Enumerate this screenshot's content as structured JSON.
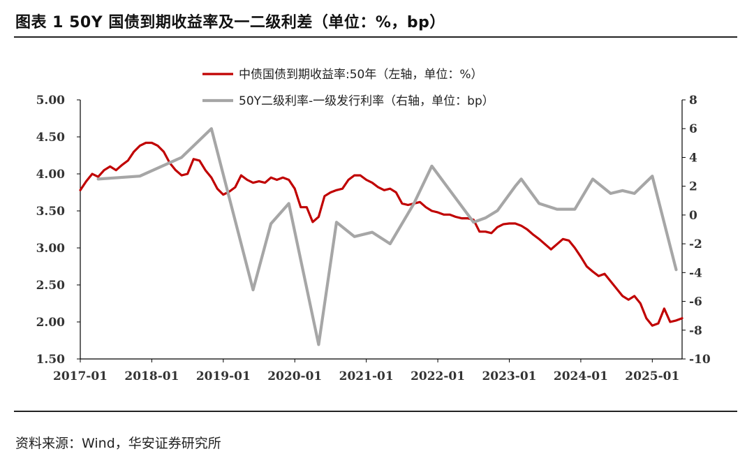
{
  "header": {
    "title": "图表 1 50Y 国债到期收益率及一二级利差（单位：%，bp）"
  },
  "footer": {
    "source": "资料来源：Wind，华安证券研究所"
  },
  "colors": {
    "series_red": "#c00000",
    "series_gray": "#a6a6a6",
    "axis": "#000000"
  },
  "chart_data": {
    "type": "line",
    "x_tick_labels": [
      "2017-01",
      "2018-01",
      "2019-01",
      "2020-01",
      "2021-01",
      "2022-01",
      "2023-01",
      "2024-01",
      "2025-01"
    ],
    "xlim": [
      "2017-01",
      "2025-06"
    ],
    "y_left": {
      "ylim": [
        1.5,
        5.0
      ],
      "ticks": [
        "1.50",
        "2.00",
        "2.50",
        "3.00",
        "3.50",
        "4.00",
        "4.50",
        "5.00"
      ]
    },
    "y_right": {
      "ylim": [
        -10,
        8
      ],
      "ticks": [
        "-10",
        "-8",
        "-6",
        "-4",
        "-2",
        "0",
        "2",
        "4",
        "6",
        "8"
      ]
    },
    "legend_position": "top-center",
    "series": [
      {
        "name": "中债国债到期收益率:50年（左轴，单位：%）",
        "axis": "left",
        "color": "#c00000",
        "points": [
          [
            "2017-01",
            3.78
          ],
          [
            "2017-02",
            3.9
          ],
          [
            "2017-03",
            4.0
          ],
          [
            "2017-04",
            3.96
          ],
          [
            "2017-05",
            4.05
          ],
          [
            "2017-06",
            4.1
          ],
          [
            "2017-07",
            4.05
          ],
          [
            "2017-08",
            4.12
          ],
          [
            "2017-09",
            4.18
          ],
          [
            "2017-10",
            4.3
          ],
          [
            "2017-11",
            4.38
          ],
          [
            "2017-12",
            4.42
          ],
          [
            "2018-01",
            4.42
          ],
          [
            "2018-02",
            4.38
          ],
          [
            "2018-03",
            4.3
          ],
          [
            "2018-04",
            4.15
          ],
          [
            "2018-05",
            4.05
          ],
          [
            "2018-06",
            3.98
          ],
          [
            "2018-07",
            4.0
          ],
          [
            "2018-08",
            4.2
          ],
          [
            "2018-09",
            4.18
          ],
          [
            "2018-10",
            4.05
          ],
          [
            "2018-11",
            3.95
          ],
          [
            "2018-12",
            3.8
          ],
          [
            "2019-01",
            3.72
          ],
          [
            "2019-02",
            3.76
          ],
          [
            "2019-03",
            3.82
          ],
          [
            "2019-04",
            3.98
          ],
          [
            "2019-05",
            3.92
          ],
          [
            "2019-06",
            3.88
          ],
          [
            "2019-07",
            3.9
          ],
          [
            "2019-08",
            3.88
          ],
          [
            "2019-09",
            3.95
          ],
          [
            "2019-10",
            3.92
          ],
          [
            "2019-11",
            3.95
          ],
          [
            "2019-12",
            3.92
          ],
          [
            "2020-01",
            3.8
          ],
          [
            "2020-02",
            3.55
          ],
          [
            "2020-03",
            3.55
          ],
          [
            "2020-04",
            3.35
          ],
          [
            "2020-05",
            3.42
          ],
          [
            "2020-06",
            3.7
          ],
          [
            "2020-07",
            3.75
          ],
          [
            "2020-08",
            3.78
          ],
          [
            "2020-09",
            3.8
          ],
          [
            "2020-10",
            3.92
          ],
          [
            "2020-11",
            3.98
          ],
          [
            "2020-12",
            3.98
          ],
          [
            "2021-01",
            3.92
          ],
          [
            "2021-02",
            3.88
          ],
          [
            "2021-03",
            3.82
          ],
          [
            "2021-04",
            3.78
          ],
          [
            "2021-05",
            3.8
          ],
          [
            "2021-06",
            3.75
          ],
          [
            "2021-07",
            3.6
          ],
          [
            "2021-08",
            3.58
          ],
          [
            "2021-09",
            3.6
          ],
          [
            "2021-10",
            3.62
          ],
          [
            "2021-11",
            3.55
          ],
          [
            "2021-12",
            3.5
          ],
          [
            "2022-01",
            3.48
          ],
          [
            "2022-02",
            3.45
          ],
          [
            "2022-03",
            3.45
          ],
          [
            "2022-04",
            3.42
          ],
          [
            "2022-05",
            3.4
          ],
          [
            "2022-06",
            3.4
          ],
          [
            "2022-07",
            3.38
          ],
          [
            "2022-08",
            3.22
          ],
          [
            "2022-09",
            3.22
          ],
          [
            "2022-10",
            3.2
          ],
          [
            "2022-11",
            3.28
          ],
          [
            "2022-12",
            3.32
          ],
          [
            "2023-01",
            3.33
          ],
          [
            "2023-02",
            3.33
          ],
          [
            "2023-03",
            3.3
          ],
          [
            "2023-04",
            3.25
          ],
          [
            "2023-05",
            3.18
          ],
          [
            "2023-06",
            3.12
          ],
          [
            "2023-07",
            3.05
          ],
          [
            "2023-08",
            2.98
          ],
          [
            "2023-09",
            3.05
          ],
          [
            "2023-10",
            3.12
          ],
          [
            "2023-11",
            3.1
          ],
          [
            "2023-12",
            3.0
          ],
          [
            "2024-01",
            2.88
          ],
          [
            "2024-02",
            2.75
          ],
          [
            "2024-03",
            2.68
          ],
          [
            "2024-04",
            2.62
          ],
          [
            "2024-05",
            2.65
          ],
          [
            "2024-06",
            2.55
          ],
          [
            "2024-07",
            2.45
          ],
          [
            "2024-08",
            2.35
          ],
          [
            "2024-09",
            2.3
          ],
          [
            "2024-10",
            2.35
          ],
          [
            "2024-11",
            2.25
          ],
          [
            "2024-12",
            2.05
          ],
          [
            "2025-01",
            1.95
          ],
          [
            "2025-02",
            1.98
          ],
          [
            "2025-03",
            2.18
          ],
          [
            "2025-04",
            2.0
          ],
          [
            "2025-05",
            2.02
          ],
          [
            "2025-06",
            2.05
          ]
        ]
      },
      {
        "name": "50Y二级利率-一级发行利率（右轴，单位：bp）",
        "axis": "right",
        "color": "#a6a6a6",
        "points": [
          [
            "2017-04",
            2.5
          ],
          [
            "2017-11",
            2.7
          ],
          [
            "2018-06",
            4.0
          ],
          [
            "2018-11",
            6.0
          ],
          [
            "2019-06",
            -5.2
          ],
          [
            "2019-09",
            -0.6
          ],
          [
            "2019-12",
            0.8
          ],
          [
            "2020-05",
            -9.0
          ],
          [
            "2020-08",
            -0.5
          ],
          [
            "2020-11",
            -1.5
          ],
          [
            "2021-02",
            -1.2
          ],
          [
            "2021-05",
            -2.0
          ],
          [
            "2021-09",
            0.8
          ],
          [
            "2021-12",
            3.4
          ],
          [
            "2022-07",
            -0.5
          ],
          [
            "2022-09",
            -0.2
          ],
          [
            "2022-11",
            0.3
          ],
          [
            "2023-02",
            2.0
          ],
          [
            "2023-03",
            2.5
          ],
          [
            "2023-06",
            0.8
          ],
          [
            "2023-09",
            0.4
          ],
          [
            "2023-12",
            0.4
          ],
          [
            "2024-03",
            2.5
          ],
          [
            "2024-06",
            1.5
          ],
          [
            "2024-08",
            1.7
          ],
          [
            "2024-10",
            1.5
          ],
          [
            "2025-01",
            2.7
          ],
          [
            "2025-05",
            -3.8
          ]
        ]
      }
    ]
  }
}
